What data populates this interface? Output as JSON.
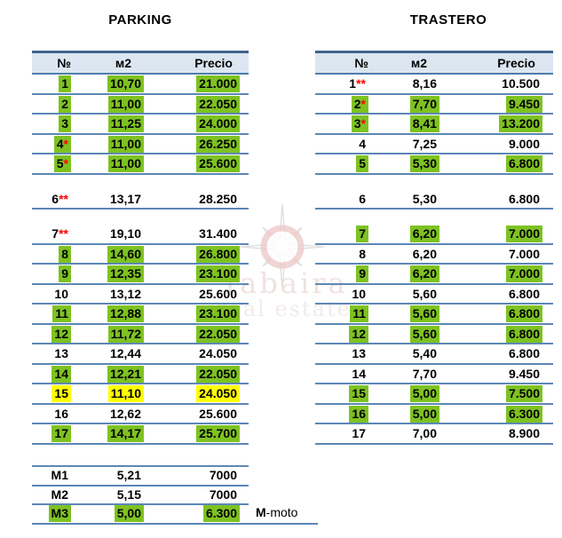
{
  "tables": [
    {
      "id": "parking",
      "title": "PARKING",
      "columns": [
        "№",
        "м2",
        "Precio"
      ],
      "groups": [
        {
          "rows": [
            {
              "n": "1",
              "ast": "",
              "m2": "10,70",
              "p": "21.000",
              "hl": "green"
            },
            {
              "n": "2",
              "ast": "",
              "m2": "11,00",
              "p": "22.050",
              "hl": "green"
            },
            {
              "n": "3",
              "ast": "",
              "m2": "11,25",
              "p": "24.000",
              "hl": "green"
            },
            {
              "n": "4",
              "ast": "*",
              "m2": "11,00",
              "p": "26.250",
              "hl": "green"
            },
            {
              "n": "5",
              "ast": "*",
              "m2": "11,00",
              "p": "25.600",
              "hl": "green"
            }
          ]
        },
        {
          "rows": [
            {
              "n": "6",
              "ast": "**",
              "m2": "13,17",
              "p": "28.250",
              "hl": ""
            }
          ]
        },
        {
          "rows": [
            {
              "n": "7",
              "ast": "**",
              "m2": "19,10",
              "p": "31.400",
              "hl": ""
            },
            {
              "n": "8",
              "ast": "",
              "m2": "14,60",
              "p": "26.800",
              "hl": "green"
            },
            {
              "n": "9",
              "ast": "",
              "m2": "12,35",
              "p": "23.100",
              "hl": "green"
            },
            {
              "n": "10",
              "ast": "",
              "m2": "13,12",
              "p": "25.600",
              "hl": ""
            },
            {
              "n": "11",
              "ast": "",
              "m2": "12,88",
              "p": "23.100",
              "hl": "green"
            },
            {
              "n": "12",
              "ast": "",
              "m2": "11,72",
              "p": "22.050",
              "hl": "green"
            },
            {
              "n": "13",
              "ast": "",
              "m2": "12,44",
              "p": "24.050",
              "hl": ""
            },
            {
              "n": "14",
              "ast": "",
              "m2": "12,21",
              "p": "22.050",
              "hl": "green"
            },
            {
              "n": "15",
              "ast": "",
              "m2": "11,10",
              "p": "24.050",
              "hl": "yellow"
            },
            {
              "n": "16",
              "ast": "",
              "m2": "12,62",
              "p": "25.600",
              "hl": ""
            },
            {
              "n": "17",
              "ast": "",
              "m2": "14,17",
              "p": "25.700",
              "hl": "green"
            }
          ]
        },
        {
          "kind": "moto",
          "rows": [
            {
              "n": "M1",
              "ast": "",
              "m2": "5,21",
              "p": "7000",
              "hl": ""
            },
            {
              "n": "M2",
              "ast": "",
              "m2": "5,15",
              "p": "7000",
              "hl": ""
            },
            {
              "n": "M3",
              "ast": "",
              "m2": "5,00",
              "p": "6.300",
              "hl": "green"
            }
          ]
        }
      ]
    },
    {
      "id": "trastero",
      "title": "TRASTERO",
      "columns": [
        "№",
        "м2",
        "Precio"
      ],
      "groups": [
        {
          "rows": [
            {
              "n": "1",
              "ast": "**",
              "m2": "8,16",
              "p": "10.500",
              "hl": ""
            },
            {
              "n": "2",
              "ast": "*",
              "m2": "7,70",
              "p": "9.450",
              "hl": "green"
            },
            {
              "n": "3",
              "ast": "*",
              "m2": "8,41",
              "p": "13.200",
              "hl": "green"
            },
            {
              "n": "4",
              "ast": "",
              "m2": "7,25",
              "p": "9.000",
              "hl": ""
            },
            {
              "n": "5",
              "ast": "",
              "m2": "5,30",
              "p": "6.800",
              "hl": "green"
            }
          ]
        },
        {
          "rows": [
            {
              "n": "6",
              "ast": "",
              "m2": "5,30",
              "p": "6.800",
              "hl": ""
            }
          ]
        },
        {
          "rows": [
            {
              "n": "7",
              "ast": "",
              "m2": "6,20",
              "p": "7.000",
              "hl": "green"
            },
            {
              "n": "8",
              "ast": "",
              "m2": "6,20",
              "p": "7.000",
              "hl": ""
            },
            {
              "n": "9",
              "ast": "",
              "m2": "6,20",
              "p": "7.000",
              "hl": "green"
            },
            {
              "n": "10",
              "ast": "",
              "m2": "5,60",
              "p": "6.800",
              "hl": ""
            },
            {
              "n": "11",
              "ast": "",
              "m2": "5,60",
              "p": "6.800",
              "hl": "green"
            },
            {
              "n": "12",
              "ast": "",
              "m2": "5,60",
              "p": "6.800",
              "hl": "green"
            },
            {
              "n": "13",
              "ast": "",
              "m2": "5,40",
              "p": "6.800",
              "hl": ""
            },
            {
              "n": "14",
              "ast": "",
              "m2": "7,70",
              "p": "9.450",
              "hl": ""
            },
            {
              "n": "15",
              "ast": "",
              "m2": "5,00",
              "p": "7.500",
              "hl": "green"
            },
            {
              "n": "16",
              "ast": "",
              "m2": "5,00",
              "p": "6.300",
              "hl": "green"
            },
            {
              "n": "17",
              "ast": "",
              "m2": "7,00",
              "p": "8.900",
              "hl": ""
            }
          ]
        }
      ]
    }
  ],
  "footnote": {
    "bold": "M",
    "rest": "-moto"
  },
  "watermark": {
    "name": "Tabaira",
    "tagline": "real estate"
  },
  "colors": {
    "highlight_green": "#7ec222",
    "highlight_yellow": "#ffff00",
    "asterisk_red": "#ff0000",
    "line_blue": "#5c87b6",
    "line_mid": "#4d7dad",
    "line_dark": "#40648c",
    "header_fill": "#dce6f1",
    "watermark_pink": "#eecaca"
  }
}
